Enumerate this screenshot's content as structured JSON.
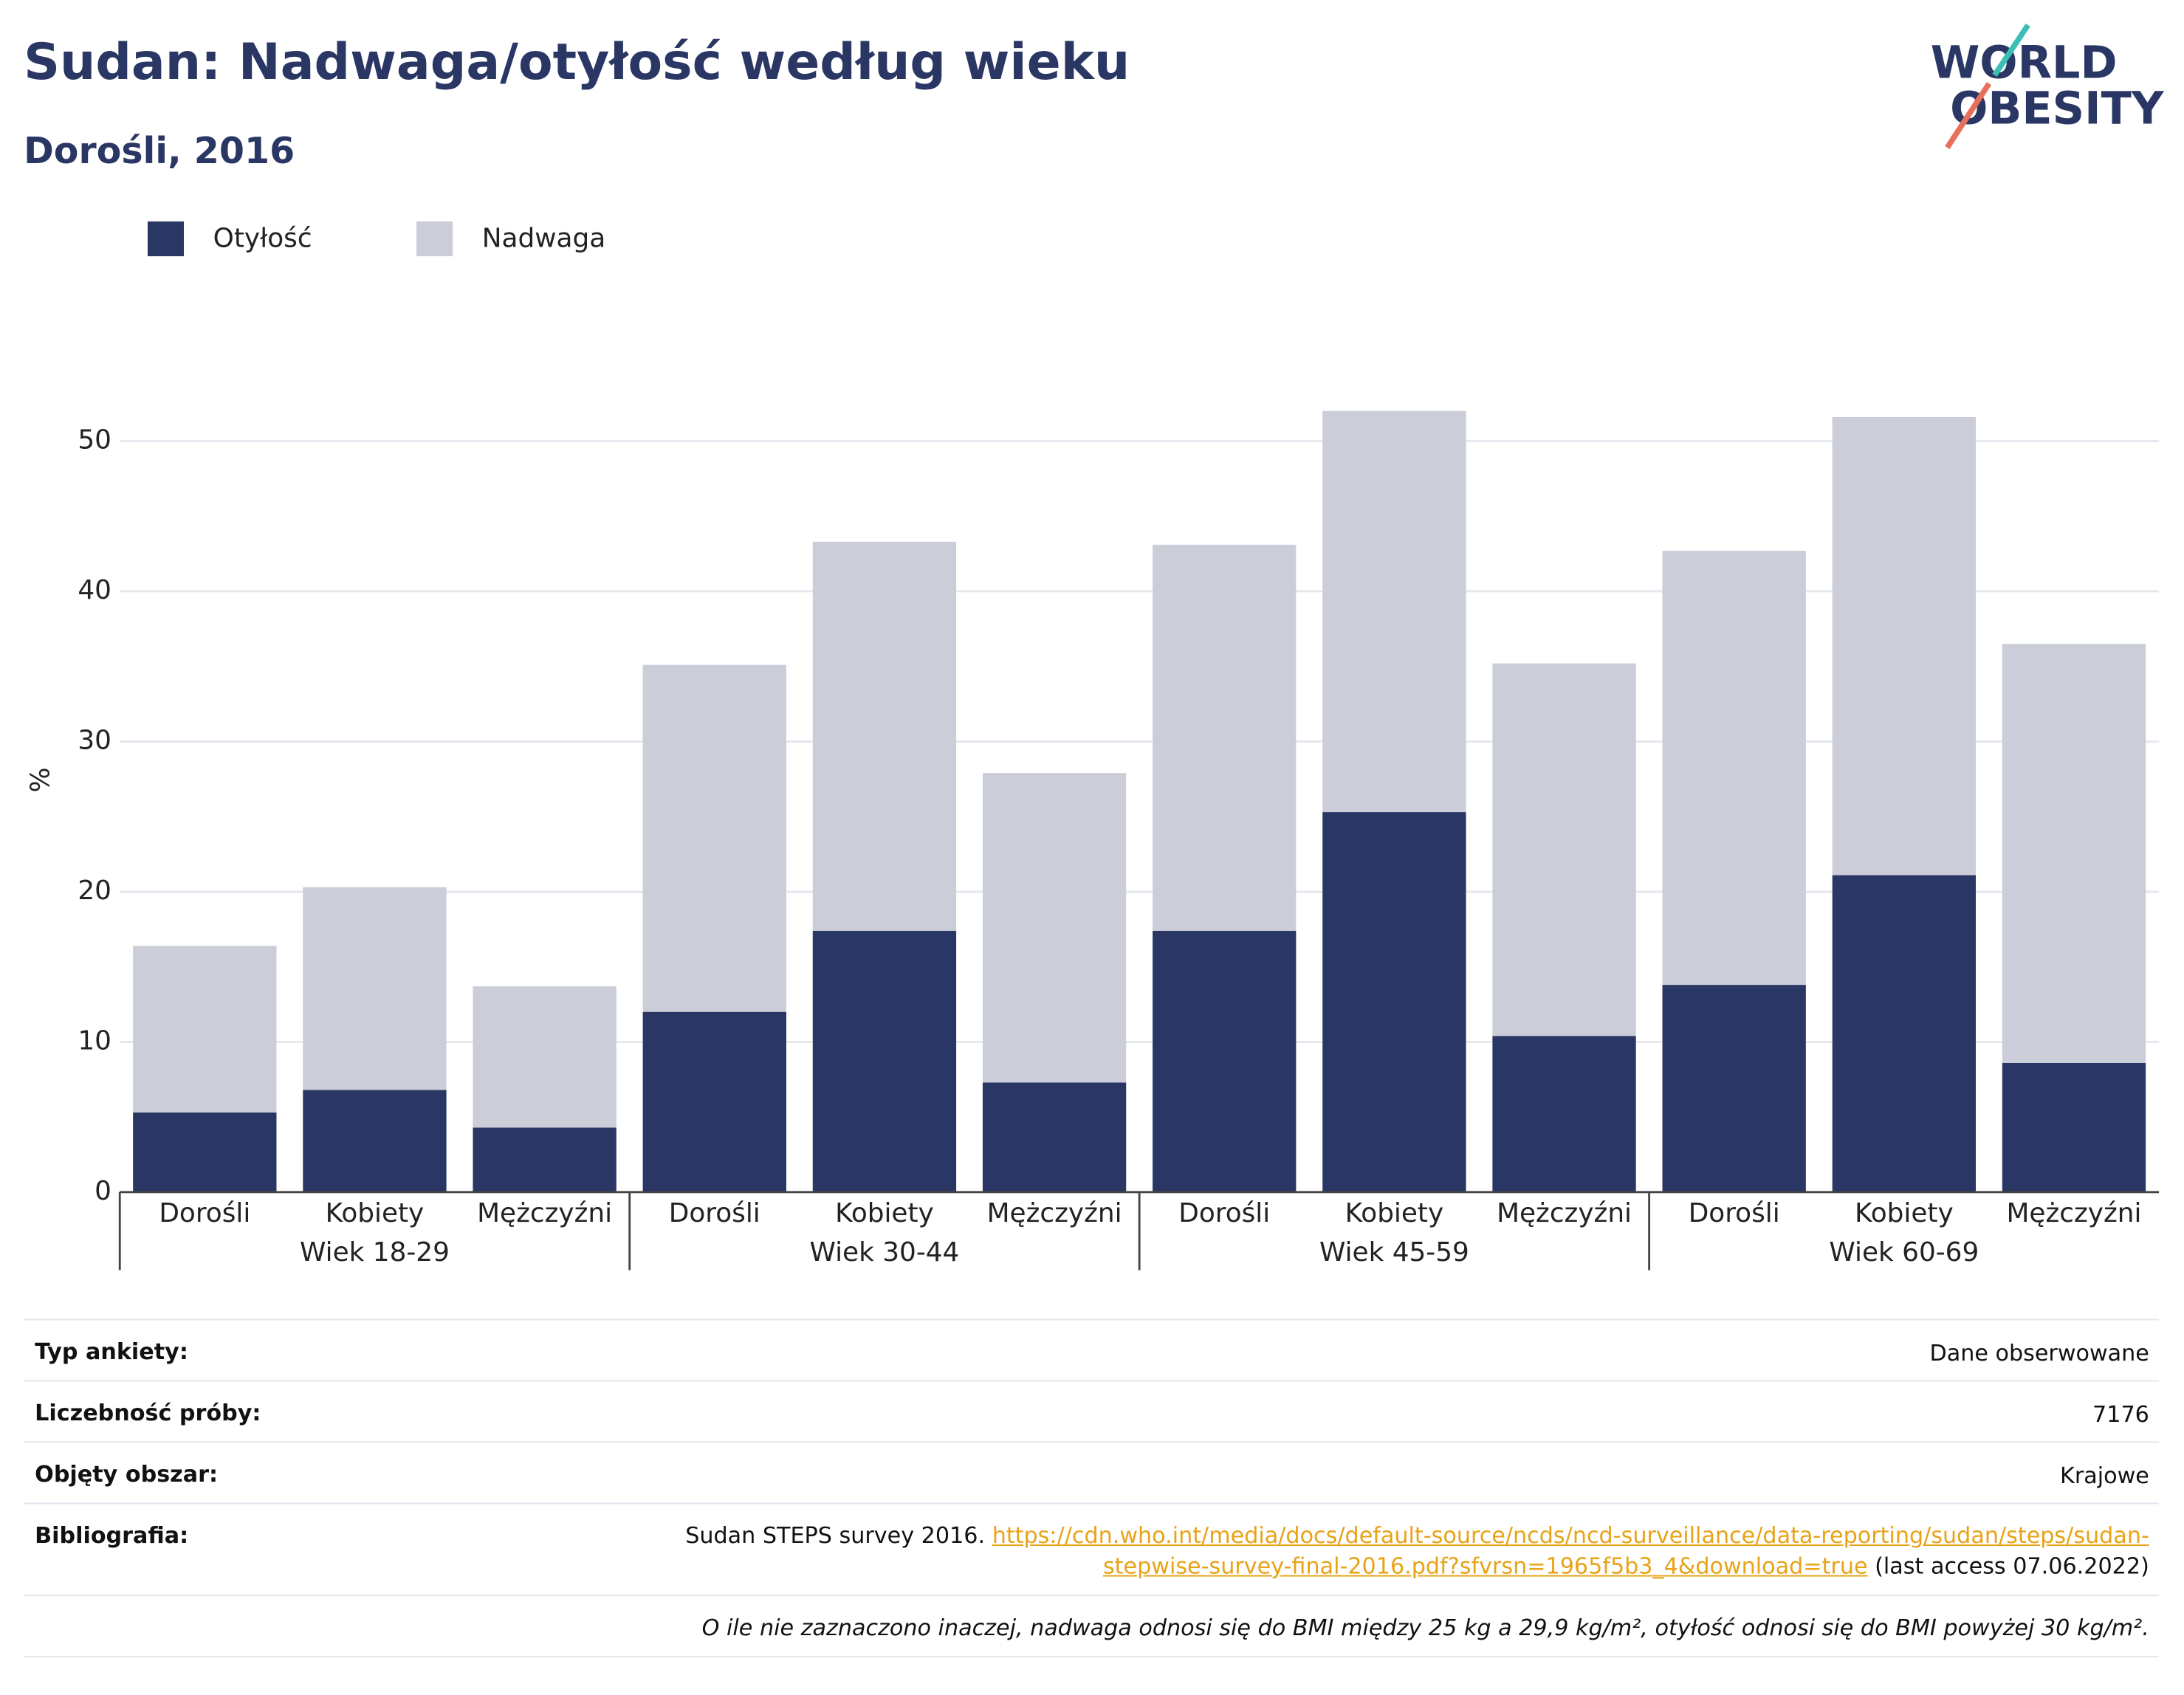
{
  "logo": {
    "line1": "WORLD",
    "line2": "OBESITY"
  },
  "chart_data": {
    "type": "stacked_bar",
    "title": "Sudan: Nadwaga/otyłość według wieku",
    "subtitle": "Dorośli, 2016",
    "y_label": "%",
    "categories": [
      "Dorośli",
      "Kobiety",
      "Mężczyźni",
      "Dorośli",
      "Kobiety",
      "Mężczyźni",
      "Dorośli",
      "Kobiety",
      "Mężczyźni",
      "Dorośli",
      "Kobiety",
      "Mężczyźni"
    ],
    "groups": [
      "Wiek 18-29",
      "Wiek 30-44",
      "Wiek 45-59",
      "Wiek 60-69"
    ],
    "series": [
      {
        "name": "Otyłość",
        "color": "#2a3663",
        "values": [
          5.3,
          6.8,
          4.3,
          12.0,
          17.4,
          7.3,
          17.4,
          25.3,
          10.4,
          13.8,
          21.1,
          8.6
        ]
      },
      {
        "name": "Nadwaga",
        "color": "#cbcdd8",
        "values": [
          11.1,
          13.5,
          9.4,
          23.1,
          25.9,
          20.6,
          25.7,
          26.7,
          24.8,
          28.9,
          30.5,
          27.9
        ]
      }
    ],
    "ylim": [
      0,
      56
    ],
    "yticks": [
      0,
      10,
      20,
      30,
      40,
      50
    ],
    "grid": true,
    "legend": "top-left"
  },
  "table": {
    "rows": [
      [
        "Typ ankiety:",
        "Dane obserwowane"
      ],
      [
        "Liczebność próby:",
        "7176"
      ],
      [
        "Objęty obszar:",
        "Krajowe"
      ],
      [
        "Bibliografia:",
        {
          "text": "Sudan STEPS survey 2016.",
          "link": "https://cdn.who.int/media/docs/default-source/ncds/ncd-surveillance/data-reporting/sudan/steps/sudan-stepwise-survey-final-2016.pdf?sfvrsn=1965f5b3_4&download=true",
          "after": "(last access 07.06.2022)"
        }
      ]
    ],
    "footnote": "O ile nie zaznaczono inaczej, nadwaga odnosi się do BMI między 25 kg a 29,9 kg/m², otyłość odnosi się do BMI powyżej 30 kg/m²."
  }
}
